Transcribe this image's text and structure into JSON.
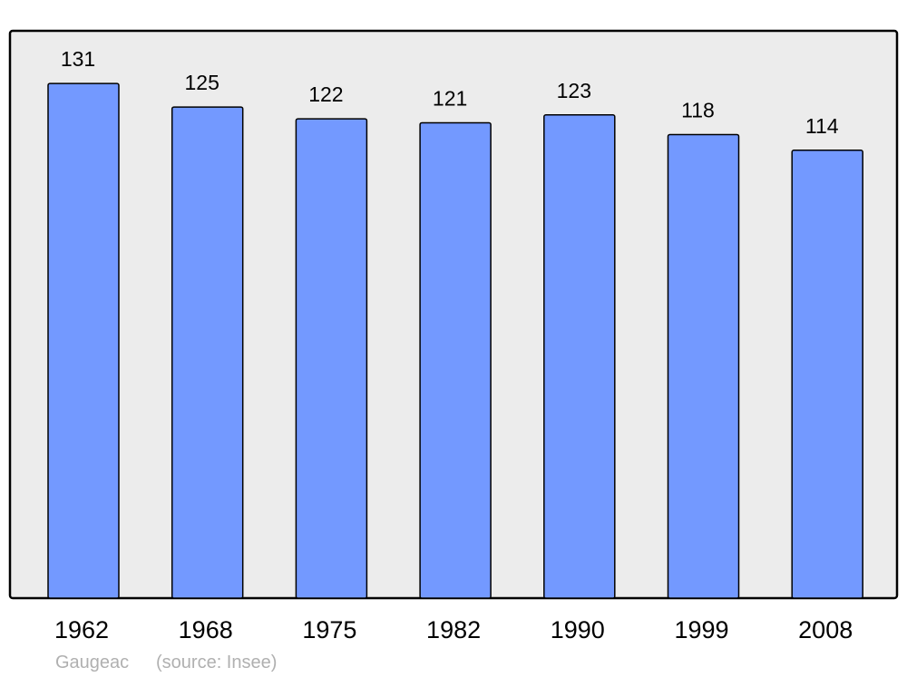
{
  "chart_data": {
    "type": "bar",
    "title": "",
    "xlabel": "",
    "ylabel": "",
    "categories": [
      "1962",
      "1968",
      "1975",
      "1982",
      "1990",
      "1999",
      "2008"
    ],
    "values": [
      131,
      125,
      122,
      121,
      123,
      118,
      114
    ],
    "data_labels": [
      "131",
      "125",
      "122",
      "121",
      "123",
      "118",
      "114"
    ],
    "ylim": [
      0,
      144.4
    ],
    "grid": false,
    "legend": "none",
    "colors": {
      "bar": "#7399ff",
      "plot_background": "#ececec",
      "outline": "#000000",
      "footer_text": "#b0b0b0"
    }
  },
  "footer": {
    "place": "Gaugeac",
    "source": "(source: Insee)"
  }
}
